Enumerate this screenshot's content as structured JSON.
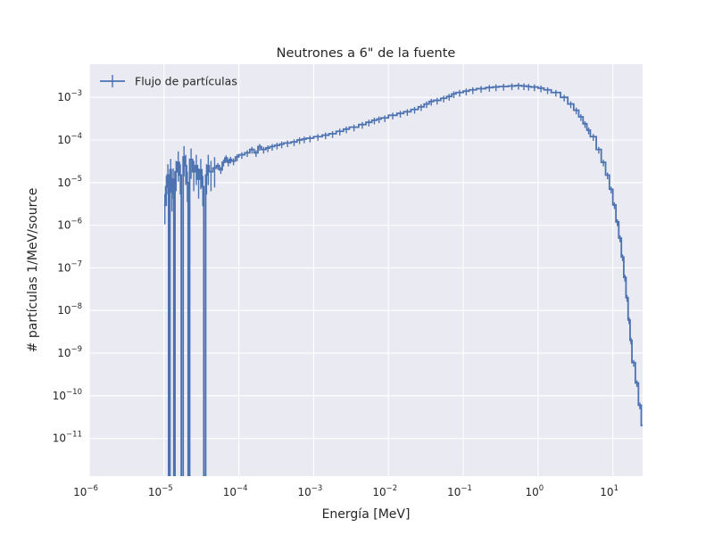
{
  "chart_data": {
    "type": "line",
    "title": "Neutrones a 6\" de la fuente",
    "xlabel": "Energía [MeV]",
    "ylabel": "# partículas 1/MeV/source",
    "x_scale": "log",
    "y_scale": "log",
    "xlim": [
      1e-06,
      25
    ],
    "ylim": [
      1.3e-12,
      0.006
    ],
    "grid": true,
    "legend_position": "top-left",
    "colors": {
      "background": "#eaeaf2",
      "grid": "#ffffff",
      "series": "#4c72b0"
    },
    "x_ticks": [
      {
        "value": 1e-06,
        "base": "10",
        "exp": "−6"
      },
      {
        "value": 1e-05,
        "base": "10",
        "exp": "−5"
      },
      {
        "value": 0.0001,
        "base": "10",
        "exp": "−4"
      },
      {
        "value": 0.001,
        "base": "10",
        "exp": "−3"
      },
      {
        "value": 0.01,
        "base": "10",
        "exp": "−2"
      },
      {
        "value": 0.1,
        "base": "10",
        "exp": "−1"
      },
      {
        "value": 1,
        "base": "10",
        "exp": "0"
      },
      {
        "value": 10,
        "base": "10",
        "exp": "1"
      }
    ],
    "y_ticks": [
      {
        "value": 1e-11,
        "base": "10",
        "exp": "−11"
      },
      {
        "value": 1e-10,
        "base": "10",
        "exp": "−10"
      },
      {
        "value": 1e-09,
        "base": "10",
        "exp": "−9"
      },
      {
        "value": 1e-08,
        "base": "10",
        "exp": "−8"
      },
      {
        "value": 1e-07,
        "base": "10",
        "exp": "−7"
      },
      {
        "value": 1e-06,
        "base": "10",
        "exp": "−6"
      },
      {
        "value": 1e-05,
        "base": "10",
        "exp": "−5"
      },
      {
        "value": 0.0001,
        "base": "10",
        "exp": "−4"
      },
      {
        "value": 0.001,
        "base": "10",
        "exp": "−3"
      }
    ],
    "series": [
      {
        "name": "Flujo de partículas",
        "style": "step-with-error-bars",
        "points": [
          [
            1e-05,
            3e-06
          ],
          [
            1.05e-05,
            8e-06
          ],
          [
            1.1e-05,
            1.5e-05
          ],
          [
            1.15e-05,
            0
          ],
          [
            1.2e-05,
            2e-05
          ],
          [
            1.25e-05,
            6e-06
          ],
          [
            1.3e-05,
            1.2e-05
          ],
          [
            1.35e-05,
            0
          ],
          [
            1.4e-05,
            1.8e-05
          ],
          [
            1.5e-05,
            3e-05
          ],
          [
            1.6e-05,
            1.5e-05
          ],
          [
            1.7e-05,
            0
          ],
          [
            1.8e-05,
            4e-05
          ],
          [
            1.9e-05,
            2.5e-05
          ],
          [
            2e-05,
            1e-05
          ],
          [
            2.1e-05,
            0
          ],
          [
            2.2e-05,
            3.5e-05
          ],
          [
            2.4e-05,
            1.8e-05
          ],
          [
            2.6e-05,
            2.5e-05
          ],
          [
            2.8e-05,
            1.2e-05
          ],
          [
            3e-05,
            2e-05
          ],
          [
            3.2e-05,
            8e-06
          ],
          [
            3.4e-05,
            0
          ],
          [
            3.6e-05,
            1.5e-05
          ],
          [
            3.8e-05,
            2.5e-05
          ],
          [
            4e-05,
            1.8e-05
          ],
          [
            4.5e-05,
            2.2e-05
          ],
          [
            5e-05,
            2.5e-05
          ],
          [
            5.5e-05,
            2e-05
          ],
          [
            6e-05,
            3e-05
          ],
          [
            6.5e-05,
            3.8e-05
          ],
          [
            7e-05,
            3e-05
          ],
          [
            7.5e-05,
            3.5e-05
          ],
          [
            8e-05,
            3.2e-05
          ],
          [
            9e-05,
            4e-05
          ],
          [
            0.0001,
            4.5e-05
          ],
          [
            0.00012,
            5e-05
          ],
          [
            0.00014,
            6e-05
          ],
          [
            0.00016,
            5e-05
          ],
          [
            0.00018,
            7e-05
          ],
          [
            0.0002,
            6e-05
          ],
          [
            0.00023,
            6.5e-05
          ],
          [
            0.00026,
            7e-05
          ],
          [
            0.0003,
            7.5e-05
          ],
          [
            0.00035,
            8e-05
          ],
          [
            0.0004,
            8.5e-05
          ],
          [
            0.0005,
            9e-05
          ],
          [
            0.0006,
            0.0001
          ],
          [
            0.0007,
            0.000105
          ],
          [
            0.0008,
            0.00011
          ],
          [
            0.001,
            0.00012
          ],
          [
            0.0013,
            0.00013
          ],
          [
            0.0016,
            0.00014
          ],
          [
            0.002,
            0.00016
          ],
          [
            0.0025,
            0.00018
          ],
          [
            0.003,
            0.0002
          ],
          [
            0.004,
            0.00023
          ],
          [
            0.005,
            0.00026
          ],
          [
            0.006,
            0.00029
          ],
          [
            0.007,
            0.00031
          ],
          [
            0.008,
            0.00033
          ],
          [
            0.01,
            0.00038
          ],
          [
            0.013,
            0.00042
          ],
          [
            0.016,
            0.00046
          ],
          [
            0.02,
            0.00052
          ],
          [
            0.025,
            0.0006
          ],
          [
            0.03,
            0.0007
          ],
          [
            0.035,
            0.0008
          ],
          [
            0.04,
            0.00085
          ],
          [
            0.05,
            0.00095
          ],
          [
            0.06,
            0.00105
          ],
          [
            0.07,
            0.0012
          ],
          [
            0.08,
            0.0013
          ],
          [
            0.1,
            0.0014
          ],
          [
            0.12,
            0.0015
          ],
          [
            0.15,
            0.0016
          ],
          [
            0.2,
            0.0017
          ],
          [
            0.25,
            0.00175
          ],
          [
            0.3,
            0.0018
          ],
          [
            0.4,
            0.00185
          ],
          [
            0.5,
            0.0019
          ],
          [
            0.6,
            0.00185
          ],
          [
            0.7,
            0.0018
          ],
          [
            0.8,
            0.00175
          ],
          [
            1.0,
            0.00165
          ],
          [
            1.2,
            0.0015
          ],
          [
            1.5,
            0.0013
          ],
          [
            2.0,
            0.001
          ],
          [
            2.5,
            0.0007
          ],
          [
            3.0,
            0.0005
          ],
          [
            3.5,
            0.00035
          ],
          [
            4.0,
            0.00024
          ],
          [
            4.5,
            0.00017
          ],
          [
            5.0,
            0.00012
          ],
          [
            6.0,
            6e-05
          ],
          [
            7.0,
            3e-05
          ],
          [
            8.0,
            1.5e-05
          ],
          [
            9.0,
            7e-06
          ],
          [
            10.0,
            3e-06
          ],
          [
            11.0,
            1.2e-06
          ],
          [
            12.0,
            5e-07
          ],
          [
            13.0,
            1.8e-07
          ],
          [
            14.0,
            6e-08
          ],
          [
            15.0,
            2e-08
          ],
          [
            16.0,
            6e-09
          ],
          [
            17.0,
            2e-09
          ],
          [
            18.0,
            6e-10
          ],
          [
            20.0,
            2e-10
          ],
          [
            22.0,
            6e-11
          ],
          [
            24.0,
            2e-11
          ]
        ]
      }
    ]
  }
}
